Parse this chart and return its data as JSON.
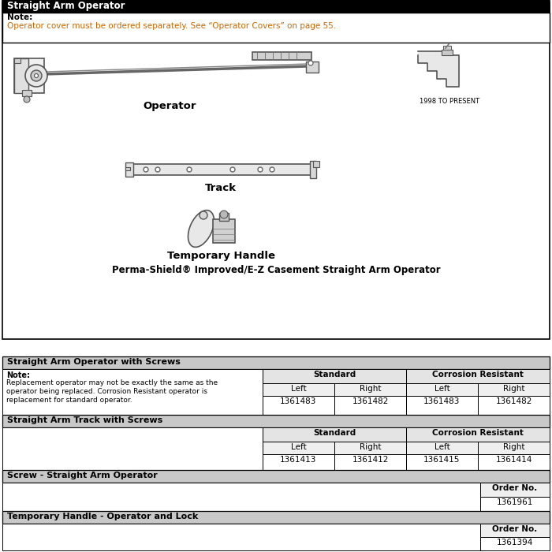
{
  "title": "Straight Arm Operator",
  "note_label": "Note:",
  "note_text": "Operator cover must be ordered separately. See “Operator Covers” on page 55.",
  "note_color": "#cc6600",
  "image_label1": "Operator",
  "image_label2": "Track",
  "image_label3": "Temporary Handle",
  "year_label": "1998 TO PRESENT",
  "bottom_caption": "Perma-Shield® Improved/E-Z Casement Straight Arm Operator",
  "section2_title": "Straight Arm Operator with Screws",
  "section2_note_label": "Note:",
  "section2_note_text": "Replacement operator may not be exactly the same as the\noperator being replaced. Corrosion Resistant operator is\nreplacement for standard operator.",
  "section3_title": "Straight Arm Track with Screws",
  "section4_title": "Screw - Straight Arm Operator",
  "section5_title": "Temporary Handle - Operator and Lock",
  "col_standard": "Standard",
  "col_corrosion": "Corrosion Resistant",
  "col_left": "Left",
  "col_right": "Right",
  "col_order_no": "Order No.",
  "op_std_left": "1361483",
  "op_std_right": "1361482",
  "op_cr_left": "1361483",
  "op_cr_right": "1361482",
  "tr_std_left": "1361413",
  "tr_std_right": "1361412",
  "tr_cr_left": "1361415",
  "tr_cr_right": "1361414",
  "screw_order": "1361961",
  "handle_order": "1361394"
}
